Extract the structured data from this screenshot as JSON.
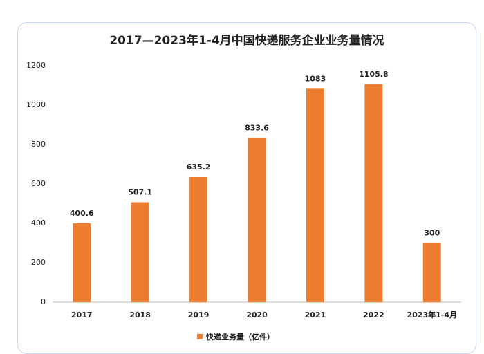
{
  "chart_data": {
    "type": "bar",
    "title": "2017—2023年1-4月中国快递服务企业业务量情况",
    "categories": [
      "2017",
      "2018",
      "2019",
      "2020",
      "2021",
      "2022",
      "2023年1-4月"
    ],
    "series": [
      {
        "name": "快递业务量（亿件）",
        "color": "#ed7d31",
        "values": [
          400.6,
          507.1,
          635.2,
          833.6,
          1083,
          1105.8,
          300
        ]
      }
    ],
    "ylim": [
      0,
      1200
    ],
    "yticks": [
      0,
      200,
      400,
      600,
      800,
      1000,
      1200
    ],
    "grid": false,
    "legend": "bottom"
  }
}
